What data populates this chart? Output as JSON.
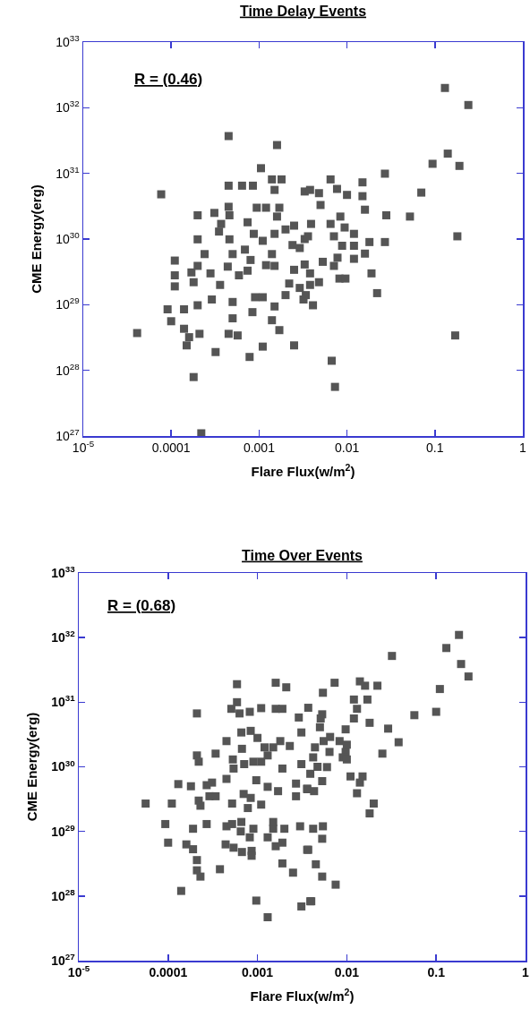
{
  "chart_data": [
    {
      "type": "scatter",
      "title": "Time Delay Events",
      "xlabel": "Flare Flux(w/m$^{2}$)",
      "ylabel": "CME Energy(erg)",
      "color": "#555555",
      "marker": "square",
      "log": "xy",
      "xlim": [
        1e-05,
        1
      ],
      "ylim": [
        1e+27,
        1e+33
      ],
      "xticks": [
        {
          "value": 1e-05,
          "label": "10$^{-5}$"
        },
        0.0001,
        0.001,
        0.01,
        0.1,
        1
      ],
      "yticks": [
        {
          "value": 1e+27,
          "label": "10$^{27}$"
        },
        {
          "value": 1e+28,
          "label": "10$^{28}$"
        },
        {
          "value": 1e+29,
          "label": "10$^{29}$"
        },
        {
          "value": 1e+30,
          "label": "10$^{30}$"
        },
        {
          "value": 1e+31,
          "label": "10$^{31}$"
        },
        {
          "value": 1e+32,
          "label": "10$^{32}$"
        },
        {
          "value": 1e+33,
          "label": "10$^{33}$"
        }
      ],
      "annotations": [
        "R = (0.46)"
      ],
      "x": [
        4.1e-05,
        7.7e-05,
        0.00045,
        0.0016,
        0.00105,
        0.00045,
        0.00064,
        0.00085,
        0.0014,
        0.0018,
        0.0015,
        0.0033,
        0.0002,
        0.00031,
        0.00045,
        0.00046,
        0.00094,
        0.0012,
        0.0017,
        0.0016,
        0.00074,
        0.00037,
        0.00035,
        0.0002,
        0.00046,
        0.00087,
        0.0011,
        0.0015,
        0.002,
        0.0025,
        0.0033,
        0.0024,
        0.0029,
        0.00024,
        0.0005,
        0.00069,
        0.0014,
        0.00011,
        0.0002,
        0.00044,
        0.0008,
        0.0012,
        0.0015,
        0.0025,
        0.0033,
        0.00011,
        0.00017,
        0.00028,
        0.00059,
        0.00074,
        0.00011,
        0.00018,
        0.00036,
        0.0022,
        0.0029,
        0.0038,
        0.00029,
        0.0002,
        0.0005,
        0.0009,
        0.0011,
        0.0015,
        0.002,
        0.0032,
        9.1e-05,
        0.00014,
        0.00084,
        0.0001,
        0.0005,
        0.0014,
        0.00014,
        0.00021,
        0.00045,
        0.00057,
        0.0017,
        0.00016,
        0.00015,
        0.00032,
        0.00078,
        0.0011,
        0.0025,
        0.00018,
        0.00022,
        0.13,
        0.24,
        0.14,
        0.094,
        0.19,
        0.027,
        0.0065,
        0.015,
        0.0038,
        0.0048,
        0.0077,
        0.01,
        0.015,
        0.07,
        0.005,
        0.016,
        0.0084,
        0.028,
        0.052,
        0.0039,
        0.0065,
        0.0094,
        0.012,
        0.0036,
        0.0071,
        0.18,
        0.0088,
        0.012,
        0.018,
        0.027,
        0.016,
        0.0053,
        0.0078,
        0.012,
        0.0071,
        0.0038,
        0.0082,
        0.0096,
        0.019,
        0.0048,
        0.022,
        0.0034,
        0.0041,
        0.17,
        0.0067,
        0.0073
      ],
      "values": [
        3.7e+28,
        4.8e+30,
        3.7e+31,
        2.7e+31,
        1.2e+31,
        6.5e+30,
        6.5e+30,
        6.5e+30,
        8.1e+30,
        8.1e+30,
        5.6e+30,
        5.3e+30,
        2.3e+30,
        2.5e+30,
        3.1e+30,
        2.3e+30,
        3e+30,
        3e+30,
        3e+30,
        2.2e+30,
        1.8e+30,
        1.7e+30,
        1.3e+30,
        9.9e+29,
        9.9e+29,
        1.2e+30,
        9.4e+29,
        1.2e+30,
        1.4e+30,
        1.6e+30,
        1e+30,
        8.1e+29,
        7.3e+29,
        5.9e+29,
        5.9e+29,
        6.9e+29,
        5.9e+29,
        4.7e+29,
        3.9e+29,
        3.8e+29,
        4.8e+29,
        4e+29,
        3.9e+29,
        3.4e+29,
        4.1e+29,
        2.8e+29,
        3.1e+29,
        3e+29,
        2.8e+29,
        3.3e+29,
        1.9e+29,
        2.2e+29,
        2e+29,
        2.1e+29,
        1.8e+29,
        2e+29,
        1.2e+29,
        9.8e+28,
        1.1e+29,
        1.3e+29,
        1.3e+29,
        9.4e+28,
        1.4e+29,
        1.2e+29,
        8.5e+28,
        8.5e+28,
        7.7e+28,
        5.6e+28,
        6.2e+28,
        5.8e+28,
        4.3e+28,
        3.6e+28,
        3.6e+28,
        3.4e+28,
        4.1e+28,
        3.2e+28,
        2.4e+28,
        1.9e+28,
        1.6e+28,
        2.3e+28,
        2.4e+28,
        7.9e+27,
        1.1e+27,
        2e+32,
        1.1e+32,
        2e+31,
        1.4e+31,
        1.3e+31,
        9.9e+30,
        8.1e+30,
        7.3e+30,
        5.6e+30,
        5e+30,
        5.8e+30,
        4.7e+30,
        4.5e+30,
        5.1e+30,
        3.3e+30,
        2.8e+30,
        2.2e+30,
        2.3e+30,
        2.2e+30,
        1.7e+30,
        1.7e+30,
        1.5e+30,
        1.2e+30,
        1.1e+30,
        1.1e+30,
        1.1e+30,
        7.9e+29,
        7.9e+29,
        9e+29,
        9e+29,
        6e+29,
        4.5e+29,
        5.2e+29,
        5e+29,
        3.9e+29,
        3e+29,
        2.5e+29,
        2.5e+29,
        3e+29,
        2.2e+29,
        1.5e+29,
        1.4e+29,
        9.8e+28,
        3.4e+28,
        1.4e+28,
        5.6e+27
      ]
    },
    {
      "type": "scatter",
      "title": "Time Over Events",
      "xlabel": "Flare Flux(w/m$^{2}$)",
      "ylabel": "CME Energy(erg)",
      "color": "#555555",
      "marker": "square",
      "log": "xy",
      "xlim": [
        1e-05,
        1
      ],
      "ylim": [
        1e+27,
        1e+33
      ],
      "xticks": [
        {
          "value": 1e-05,
          "label": "10$^{-5}$"
        },
        0.0001,
        0.001,
        0.01,
        0.1,
        1
      ],
      "yticks": [
        {
          "value": 1e+27,
          "label": "10$^{27}$"
        },
        {
          "value": 1e+28,
          "label": "10$^{28}$"
        },
        {
          "value": 1e+29,
          "label": "10$^{29}$"
        },
        {
          "value": 1e+30,
          "label": "10$^{30}$"
        },
        {
          "value": 1e+31,
          "label": "10$^{31}$"
        },
        {
          "value": 1e+32,
          "label": "10$^{32}$"
        },
        {
          "value": 1e+33,
          "label": "10$^{33}$"
        }
      ],
      "annotations": [
        "R = (0.68)"
      ],
      "x": [
        5.6e-05,
        0.00011,
        9.3e-05,
        0.0001,
        0.00014,
        0.00013,
        0.00018,
        0.00021,
        0.00021,
        0.00022,
        0.00022,
        0.00023,
        0.00019,
        0.00016,
        0.00019,
        0.00021,
        0.00021,
        0.00023,
        0.00038,
        0.00027,
        0.00031,
        0.00029,
        0.00034,
        0.00027,
        0.00034,
        0.00045,
        0.00059,
        0.00059,
        0.00051,
        0.00063,
        0.00082,
        0.0011,
        0.0016,
        0.0021,
        0.0016,
        0.0019,
        0.00066,
        0.00084,
        0.001,
        0.00067,
        0.00053,
        0.00054,
        0.00071,
        0.0009,
        0.0011,
        0.00045,
        0.0007,
        0.00084,
        0.00052,
        0.00078,
        0.0011,
        0.00097,
        0.0013,
        0.0017,
        0.0012,
        0.0015,
        0.0018,
        0.0023,
        0.0013,
        0.0019,
        0.0031,
        0.0029,
        0.0031,
        0.0027,
        0.0027,
        0.0036,
        0.00045,
        0.00052,
        0.00066,
        0.00065,
        0.0009,
        0.00082,
        0.0015,
        0.0015,
        0.002,
        0.0013,
        0.003,
        0.00044,
        0.00054,
        0.00067,
        0.00086,
        0.00086,
        0.0016,
        0.0019,
        0.0019,
        0.0025,
        0.0036,
        0.00097,
        0.0013,
        0.0031,
        0.0039,
        0.18,
        0.13,
        0.19,
        0.23,
        0.032,
        0.11,
        0.1,
        0.057,
        0.0073,
        0.014,
        0.016,
        0.022,
        0.0054,
        0.0037,
        0.012,
        0.017,
        0.013,
        0.0053,
        0.012,
        0.0051,
        0.005,
        0.0097,
        0.018,
        0.029,
        0.038,
        0.0065,
        0.0055,
        0.0083,
        0.01,
        0.0044,
        0.0064,
        0.0097,
        0.025,
        0.009,
        0.01,
        0.0042,
        0.0047,
        0.006,
        0.0039,
        0.0053,
        0.011,
        0.015,
        0.014,
        0.0036,
        0.0043,
        0.013,
        0.02,
        0.018,
        0.0042,
        0.0054,
        0.0053,
        0.0037,
        0.0045,
        0.0053,
        0.0075,
        0.004
      ],
      "values": [
        2.7e+29,
        2.7e+29,
        1.3e+29,
        6.7e+28,
        1.2e+28,
        5.4e+29,
        5e+29,
        6.7e+30,
        1.5e+30,
        1.2e+30,
        3e+29,
        2.5e+29,
        1.1e+29,
        6.3e+28,
        5.3e+28,
        3.6e+28,
        2.5e+28,
        2e+28,
        2.6e+28,
        5.2e+29,
        5.7e+29,
        3.5e+29,
        3.5e+29,
        1.3e+29,
        1.6e+30,
        2.5e+30,
        1.9e+31,
        1e+31,
        7.9e+30,
        6.7e+30,
        7.1e+30,
        8.1e+30,
        2e+31,
        1.7e+31,
        7.9e+30,
        7.9e+30,
        3.4e+30,
        3.6e+30,
        2.8e+30,
        1.9e+30,
        1.3e+30,
        9.4e+29,
        1.1e+30,
        1.2e+30,
        1.2e+30,
        6.5e+29,
        3.8e+29,
        3.3e+29,
        2.7e+29,
        2.3e+29,
        2.6e+29,
        6.2e+29,
        4.9e+29,
        4.2e+29,
        2e+30,
        2e+30,
        2.5e+30,
        2.1e+30,
        1.5e+30,
        9.4e+29,
        1.1e+30,
        5.8e+30,
        3.4e+30,
        5.5e+29,
        3.5e+29,
        4.5e+29,
        1.2e+29,
        1.3e+29,
        1.4e+29,
        1e+29,
        1.1e+29,
        8.1e+28,
        1.4e+29,
        1.1e+29,
        1.1e+29,
        8.1e+28,
        1.2e+29,
        6.3e+28,
        5.6e+28,
        4.8e+28,
        5e+28,
        4.2e+28,
        5.9e+28,
        6.7e+28,
        3.2e+28,
        2.3e+28,
        5.2e+28,
        8.5e+27,
        4.7e+27,
        6.9e+27,
        8.3e+27,
        1.1e+32,
        6.9e+31,
        3.9e+31,
        2.5e+31,
        5.2e+31,
        1.6e+31,
        7.1e+30,
        6.3e+30,
        2e+31,
        2.1e+31,
        1.8e+31,
        1.8e+31,
        1.4e+31,
        8.2e+30,
        1.1e+31,
        1.1e+31,
        7.9e+30,
        6.5e+30,
        5.6e+30,
        5.6e+30,
        4.1e+30,
        3.8e+30,
        4.8e+30,
        3.9e+30,
        2.4e+30,
        2.9e+30,
        2.5e+30,
        2.5e+30,
        2.2e+30,
        2e+30,
        1.7e+30,
        1.7e+30,
        1.6e+30,
        1.4e+30,
        1.3e+30,
        1.4e+30,
        1e+30,
        9.9e+29,
        7.8e+29,
        6e+29,
        7.1e+29,
        7.1e+29,
        5.7e+29,
        4.6e+29,
        4.2e+29,
        3.9e+29,
        2.7e+29,
        1.9e+29,
        1.1e+29,
        1.2e+29,
        7.7e+28,
        5.2e+28,
        3.1e+28,
        2e+28,
        1.5e+28,
        8.3e+27
      ]
    }
  ]
}
